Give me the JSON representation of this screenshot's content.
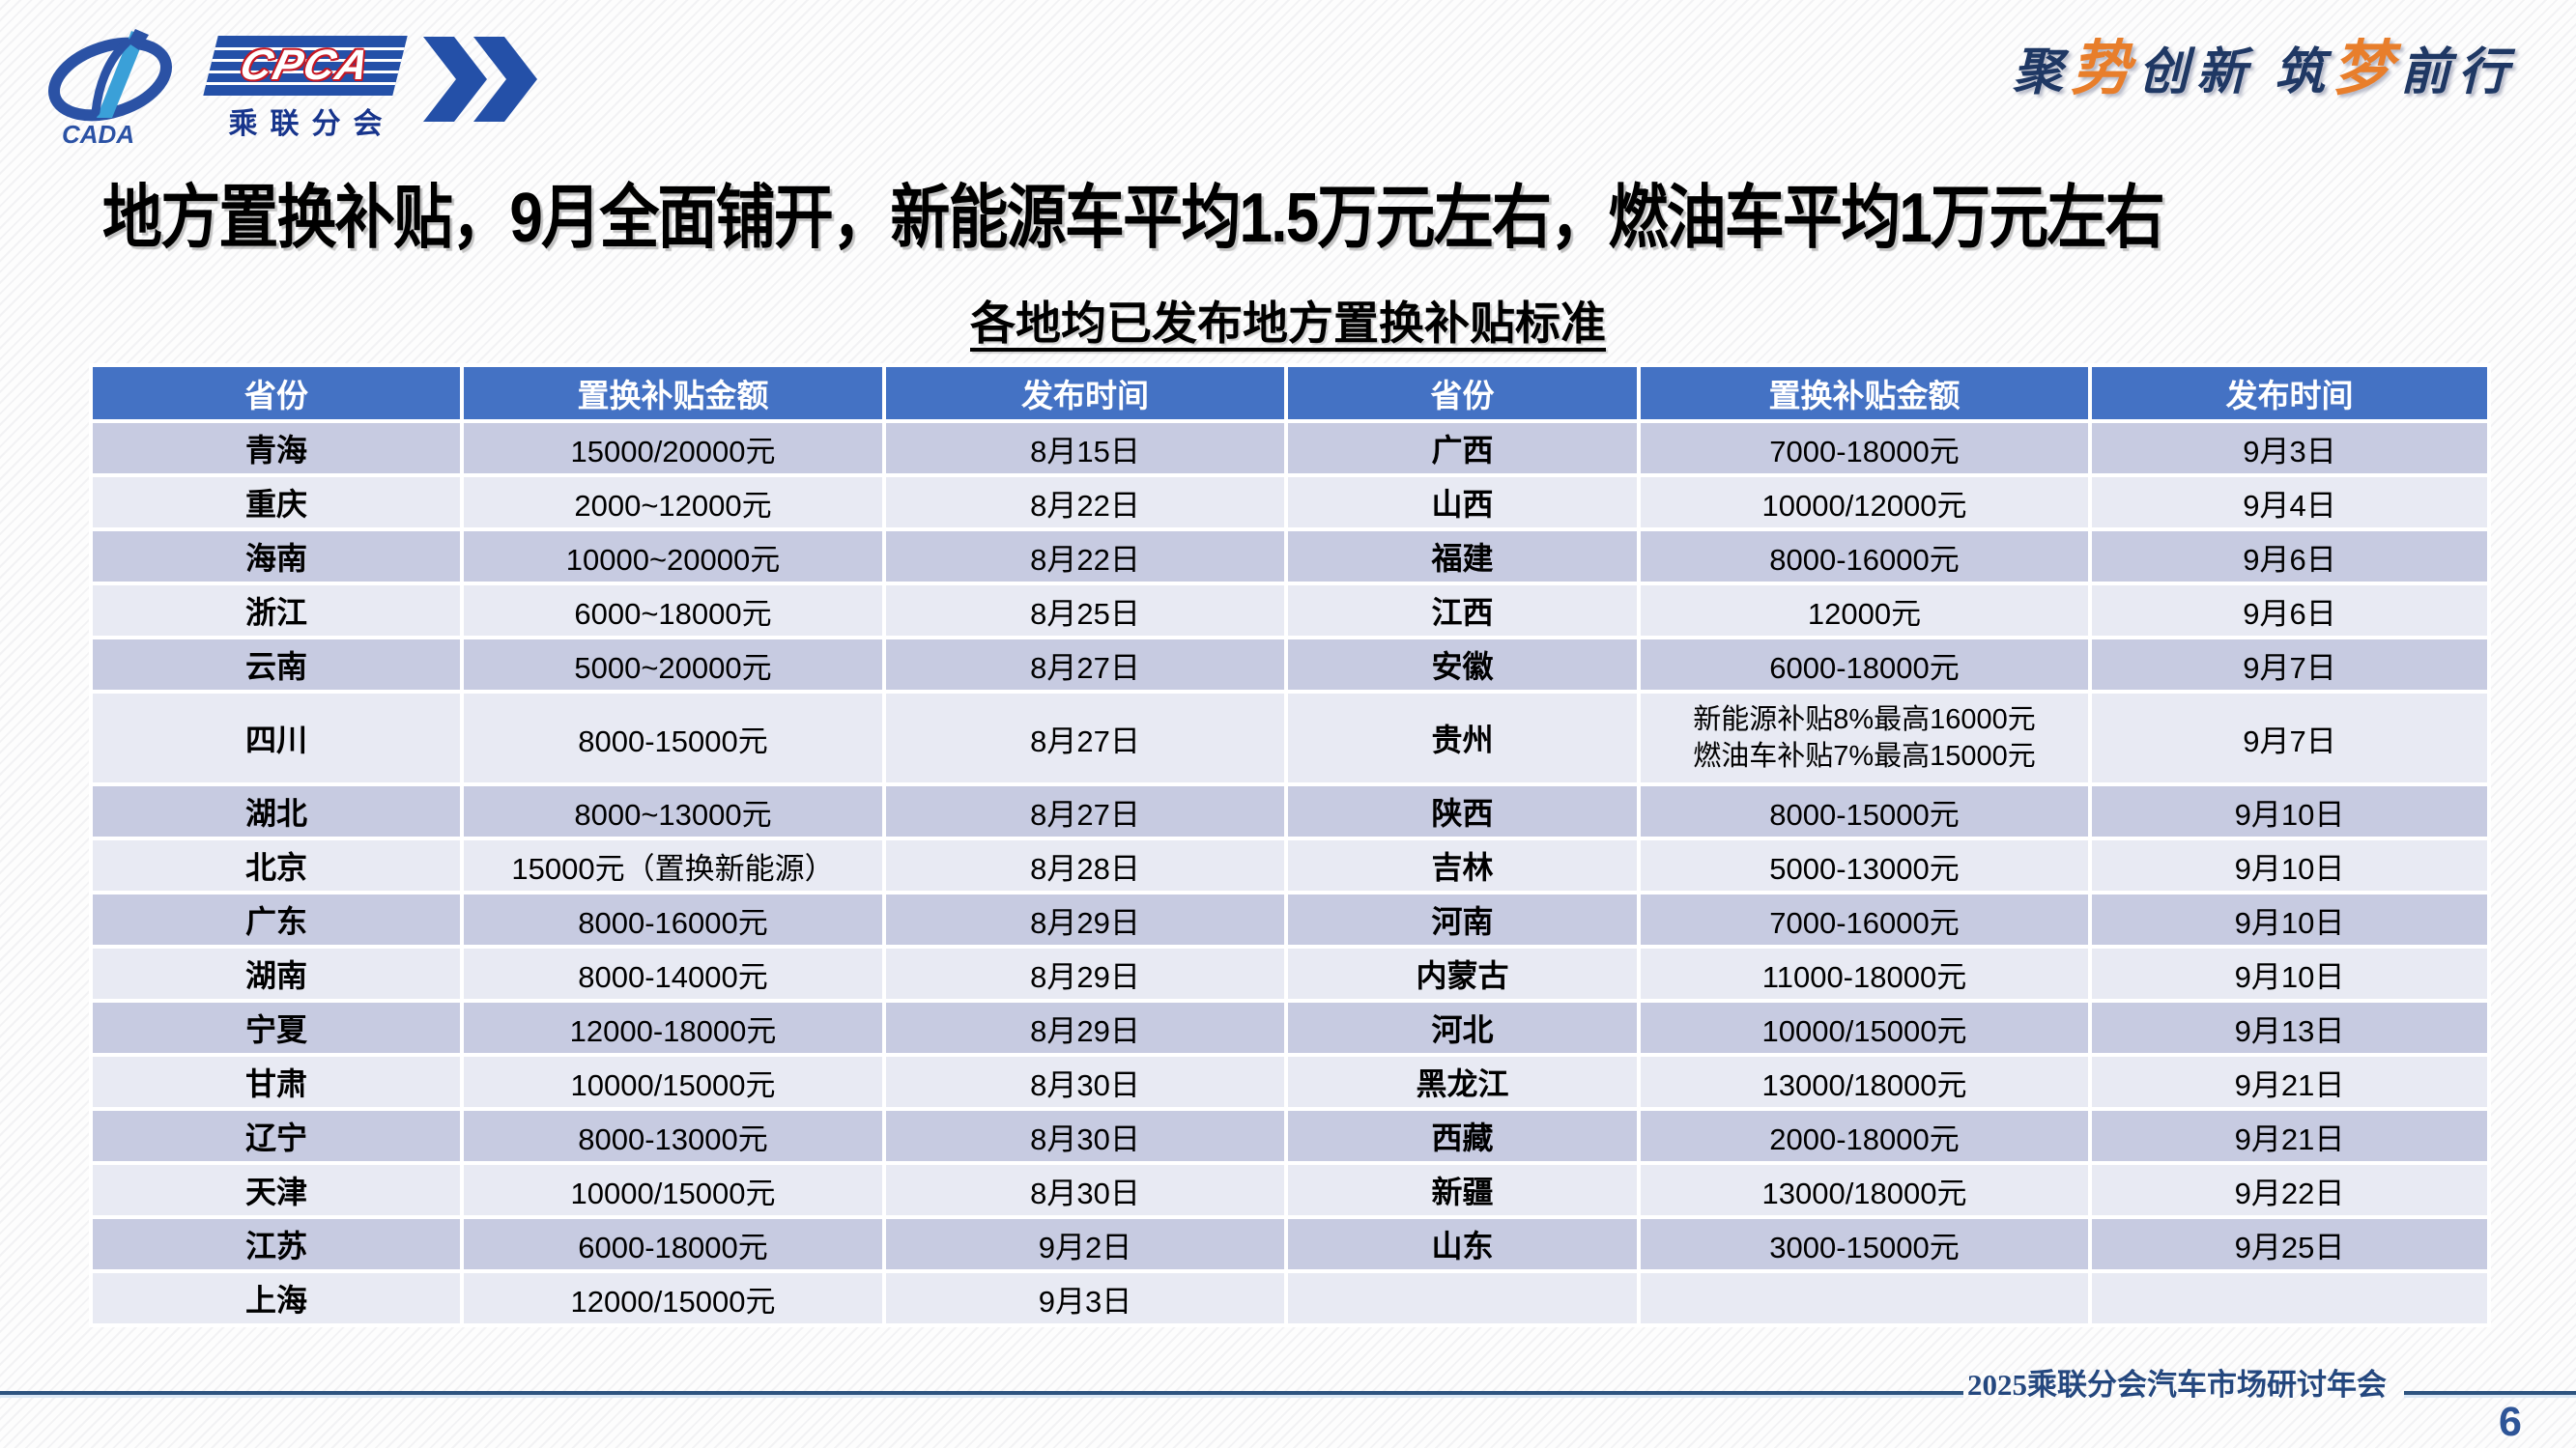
{
  "slide": {
    "logo": {
      "cada_text": "CADA",
      "cpca_text": "CPCA",
      "org_name": "乘联分会"
    },
    "slogan": {
      "segments": [
        {
          "text": "聚",
          "color": "navy"
        },
        {
          "text": "势",
          "color": "orange"
        },
        {
          "text": "创新",
          "color": "navy"
        },
        {
          "text": " 筑",
          "color": "navy"
        },
        {
          "text": "梦",
          "color": "orange"
        },
        {
          "text": "前行",
          "color": "navy"
        }
      ]
    },
    "title": "地方置换补贴，9月全面铺开，新能源车平均1.5万元左右，燃油车平均1万元左右",
    "subtitle": "各地均已发布地方置换补贴标准",
    "footer": {
      "conference": "2025乘联分会汽车市场研讨年会",
      "page_number": "6"
    }
  },
  "table": {
    "headers": [
      "省份",
      "置换补贴金额",
      "发布时间",
      "省份",
      "置换补贴金额",
      "发布时间"
    ],
    "tall_row_index": 5,
    "rows": [
      [
        "青海",
        "15000/20000元",
        "8月15日",
        "广西",
        "7000-18000元",
        "9月3日"
      ],
      [
        "重庆",
        "2000~12000元",
        "8月22日",
        "山西",
        "10000/12000元",
        "9月4日"
      ],
      [
        "海南",
        "10000~20000元",
        "8月22日",
        "福建",
        "8000-16000元",
        "9月6日"
      ],
      [
        "浙江",
        "6000~18000元",
        "8月25日",
        "江西",
        "12000元",
        "9月6日"
      ],
      [
        "云南",
        "5000~20000元",
        "8月27日",
        "安徽",
        "6000-18000元",
        "9月7日"
      ],
      [
        "四川",
        "8000-15000元",
        "8月27日",
        "贵州",
        "新能源补贴8%最高16000元\n燃油车补贴7%最高15000元",
        "9月7日"
      ],
      [
        "湖北",
        "8000~13000元",
        "8月27日",
        "陕西",
        "8000-15000元",
        "9月10日"
      ],
      [
        "北京",
        "15000元（置换新能源）",
        "8月28日",
        "吉林",
        "5000-13000元",
        "9月10日"
      ],
      [
        "广东",
        "8000-16000元",
        "8月29日",
        "河南",
        "7000-16000元",
        "9月10日"
      ],
      [
        "湖南",
        "8000-14000元",
        "8月29日",
        "内蒙古",
        "11000-18000元",
        "9月10日"
      ],
      [
        "宁夏",
        "12000-18000元",
        "8月29日",
        "河北",
        "10000/15000元",
        "9月13日"
      ],
      [
        "甘肃",
        "10000/15000元",
        "8月30日",
        "黑龙江",
        "13000/18000元",
        "9月21日"
      ],
      [
        "辽宁",
        "8000-13000元",
        "8月30日",
        "西藏",
        "2000-18000元",
        "9月21日"
      ],
      [
        "天津",
        "10000/15000元",
        "8月30日",
        "新疆",
        "13000/18000元",
        "9月22日"
      ],
      [
        "江苏",
        "6000-18000元",
        "9月2日",
        "山东",
        "3000-15000元",
        "9月25日"
      ],
      [
        "上海",
        "12000/15000元",
        "9月3日",
        "",
        "",
        ""
      ]
    ]
  },
  "colors": {
    "header_bg": "#4472C4",
    "row_dark": "#C7CBE1",
    "row_light": "#E8EAF3",
    "logo_blue": "#2450A8",
    "accent_navy": "#1F3864",
    "accent_orange": "#E87E2B",
    "footer_line": "#2E5480",
    "page_number": "#2E5597"
  }
}
